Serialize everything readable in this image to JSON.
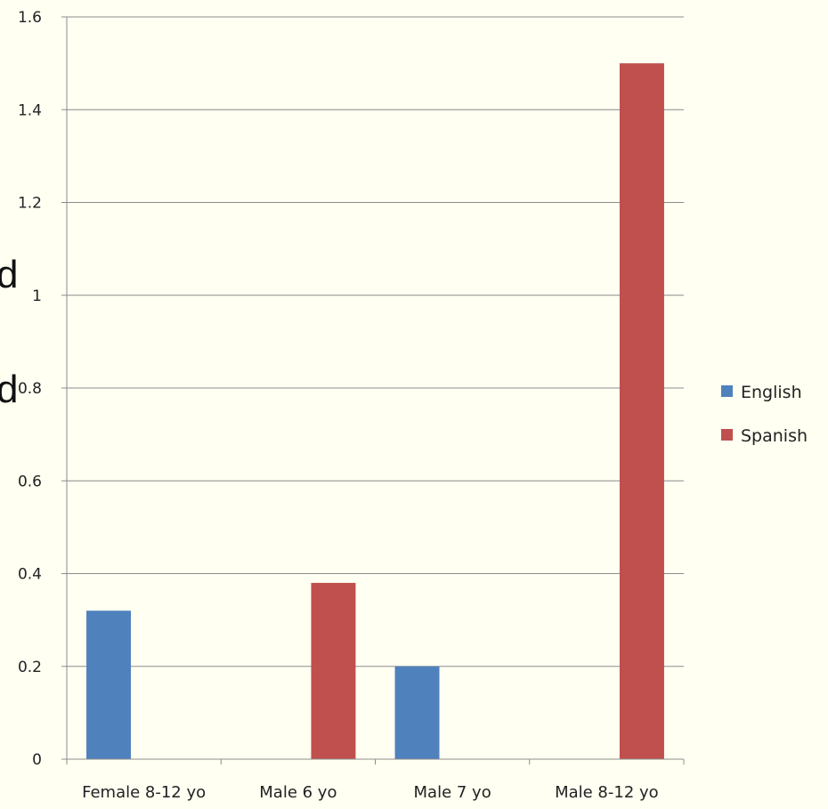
{
  "slide_fragments": [
    "d",
    "d"
  ],
  "chart_data": {
    "type": "bar",
    "title": "",
    "xlabel": "",
    "ylabel": "",
    "categories": [
      "Female 8-12 yo",
      "Male 6 yo",
      "Male 7 yo",
      "Male 8-12 yo"
    ],
    "series": [
      {
        "name": "English",
        "color": "#4f81bd",
        "values": [
          0.32,
          null,
          0.2,
          null
        ]
      },
      {
        "name": "Spanish",
        "color": "#c0504d",
        "values": [
          null,
          0.38,
          null,
          1.5
        ]
      }
    ],
    "ylim": [
      0,
      1.6
    ],
    "yticks": [
      "0",
      "0.2",
      "0.4",
      "0.6",
      "0.8",
      "1",
      "1.2",
      "1.4",
      "1.6"
    ],
    "grid": true,
    "legend": "right"
  }
}
